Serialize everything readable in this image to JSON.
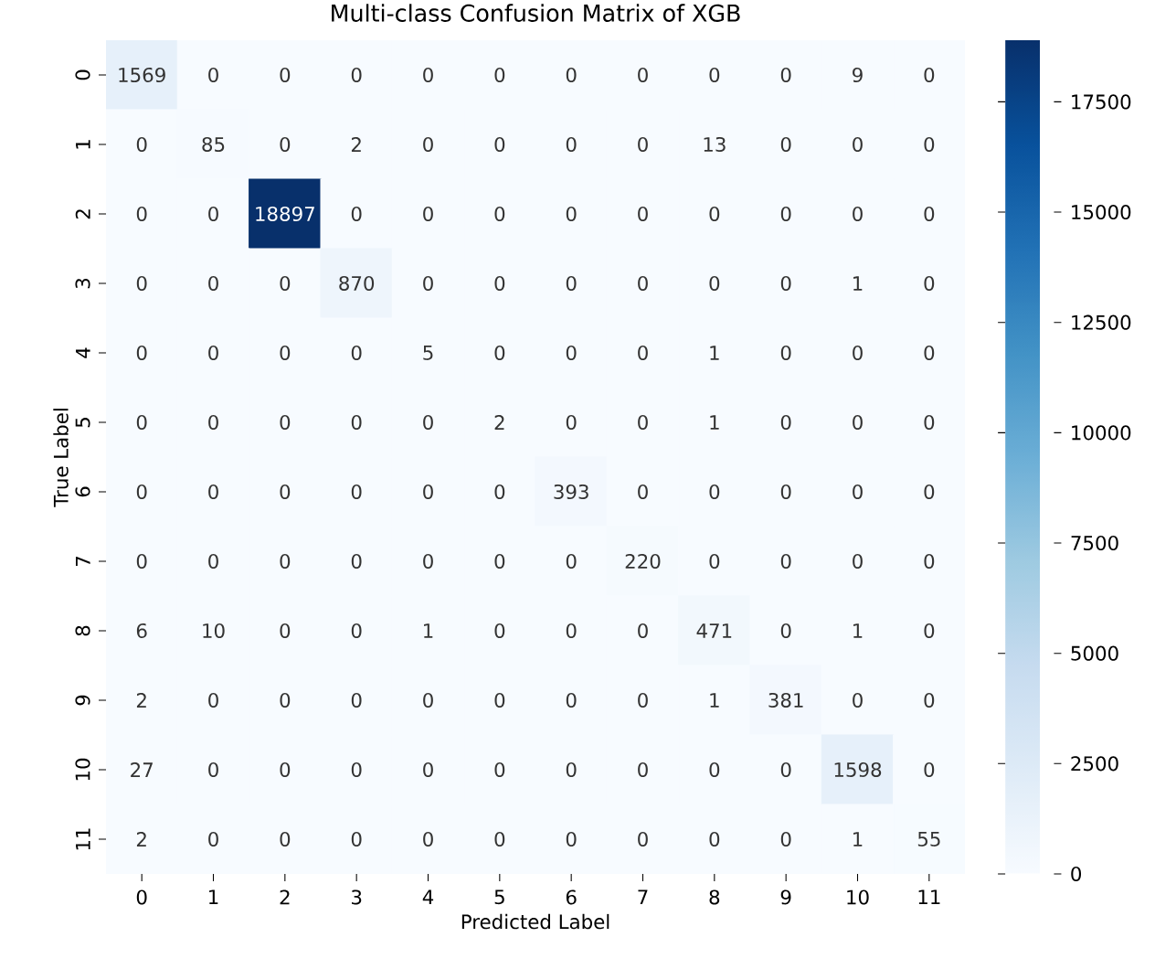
{
  "chart_data": {
    "type": "heatmap",
    "title": "Multi-class Confusion Matrix of XGB",
    "xlabel": "Predicted Label",
    "ylabel": "True Label",
    "categories": [
      "0",
      "1",
      "2",
      "3",
      "4",
      "5",
      "6",
      "7",
      "8",
      "9",
      "10",
      "11"
    ],
    "y_categories": [
      "0",
      "1",
      "2",
      "3",
      "4",
      "5",
      "6",
      "7",
      "8",
      "9",
      "10",
      "11"
    ],
    "cells": [
      [
        1569,
        0,
        0,
        0,
        0,
        0,
        0,
        0,
        0,
        0,
        9,
        0
      ],
      [
        0,
        85,
        0,
        2,
        0,
        0,
        0,
        0,
        13,
        0,
        0,
        0
      ],
      [
        0,
        0,
        18897,
        0,
        0,
        0,
        0,
        0,
        0,
        0,
        0,
        0
      ],
      [
        0,
        0,
        0,
        870,
        0,
        0,
        0,
        0,
        0,
        0,
        1,
        0
      ],
      [
        0,
        0,
        0,
        0,
        5,
        0,
        0,
        0,
        1,
        0,
        0,
        0
      ],
      [
        0,
        0,
        0,
        0,
        0,
        2,
        0,
        0,
        1,
        0,
        0,
        0
      ],
      [
        0,
        0,
        0,
        0,
        0,
        0,
        393,
        0,
        0,
        0,
        0,
        0
      ],
      [
        0,
        0,
        0,
        0,
        0,
        0,
        0,
        220,
        0,
        0,
        0,
        0
      ],
      [
        6,
        10,
        0,
        0,
        1,
        0,
        0,
        0,
        471,
        0,
        1,
        0
      ],
      [
        2,
        0,
        0,
        0,
        0,
        0,
        0,
        0,
        1,
        381,
        0,
        0
      ],
      [
        27,
        0,
        0,
        0,
        0,
        0,
        0,
        0,
        0,
        0,
        1598,
        0
      ],
      [
        2,
        0,
        0,
        0,
        0,
        0,
        0,
        0,
        0,
        0,
        1,
        55
      ]
    ],
    "data_labels": true,
    "clim": [
      0,
      18897
    ],
    "cticks": [
      0,
      2500,
      5000,
      7500,
      10000,
      12500,
      15000,
      17500
    ]
  }
}
